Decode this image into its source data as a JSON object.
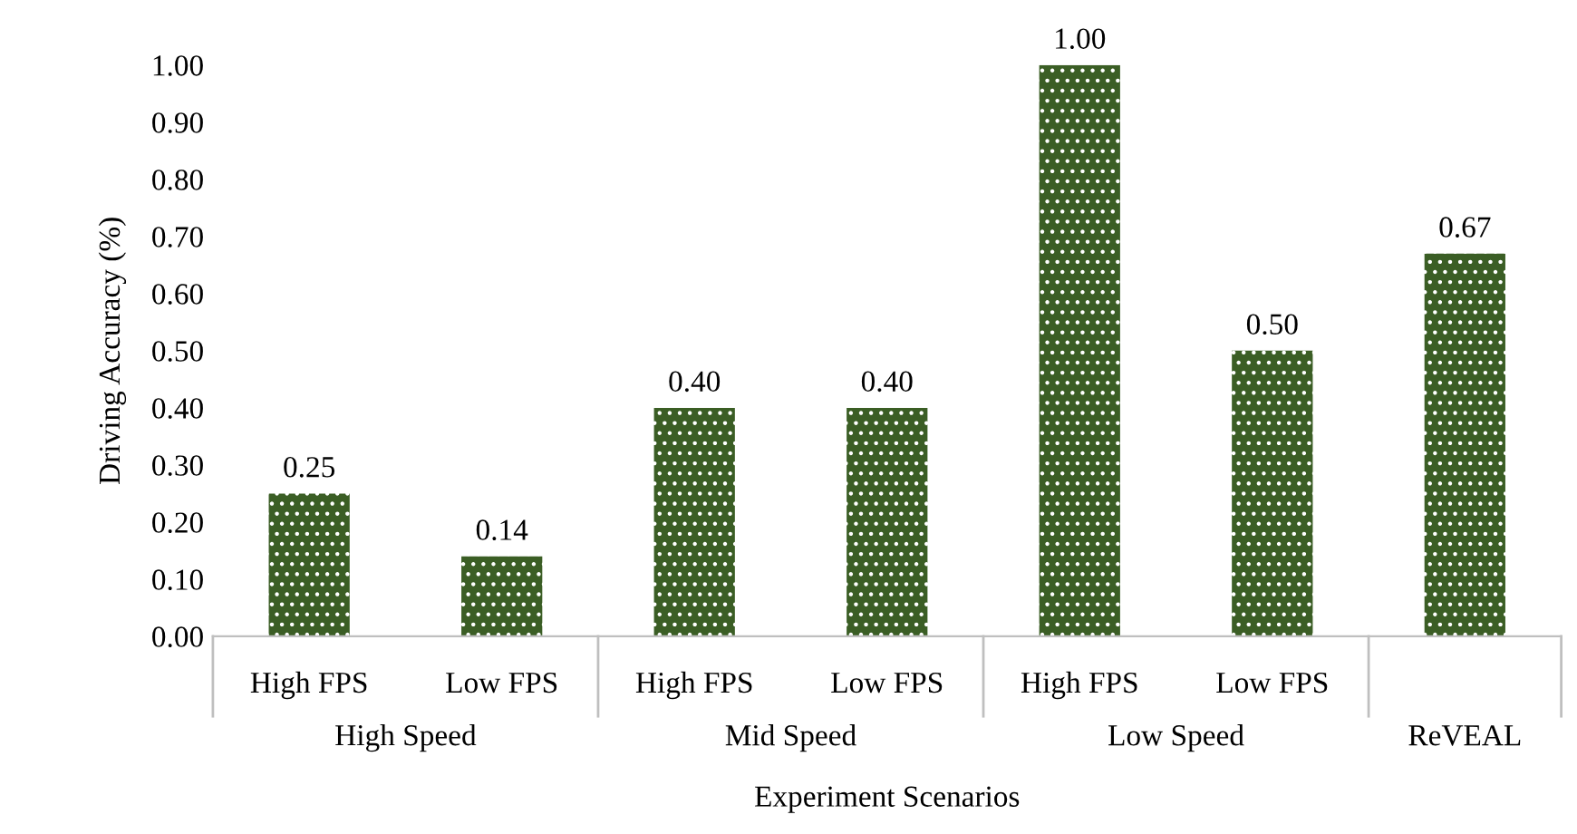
{
  "chart_data": {
    "type": "bar",
    "xlabel": "Experiment Scenarios",
    "ylabel": "Driving Accuracy (%)",
    "categories": [
      "High FPS",
      "Low FPS",
      "High FPS",
      "Low FPS",
      "High FPS",
      "Low FPS",
      null
    ],
    "values": [
      0.25,
      0.14,
      0.4,
      0.4,
      1.0,
      0.5,
      0.67
    ],
    "value_labels": [
      "0.25",
      "0.14",
      "0.40",
      "0.40",
      "1.00",
      "0.50",
      "0.67"
    ],
    "color": "#3b5e25",
    "annotations": [
      "High Speed",
      "Mid Speed",
      "Low Speed",
      "ReVEAL"
    ],
    "ylim": [
      0,
      1.0
    ],
    "yticks": [
      {
        "value": 0,
        "label": "0.00"
      },
      {
        "value": 0.1,
        "label": "0.10"
      },
      {
        "value": 0.2,
        "label": "0.20"
      },
      {
        "value": 0.3,
        "label": "0.30"
      },
      {
        "value": 0.4,
        "label": "0.40"
      },
      {
        "value": 0.5,
        "label": "0.50"
      },
      {
        "value": 0.6,
        "label": "0.60"
      },
      {
        "value": 0.7,
        "label": "0.70"
      },
      {
        "value": 0.8,
        "label": "0.80"
      },
      {
        "value": 0.9,
        "label": "0.90"
      },
      {
        "value": 1.0,
        "label": "1.00"
      }
    ],
    "grid": false,
    "legend": false
  }
}
